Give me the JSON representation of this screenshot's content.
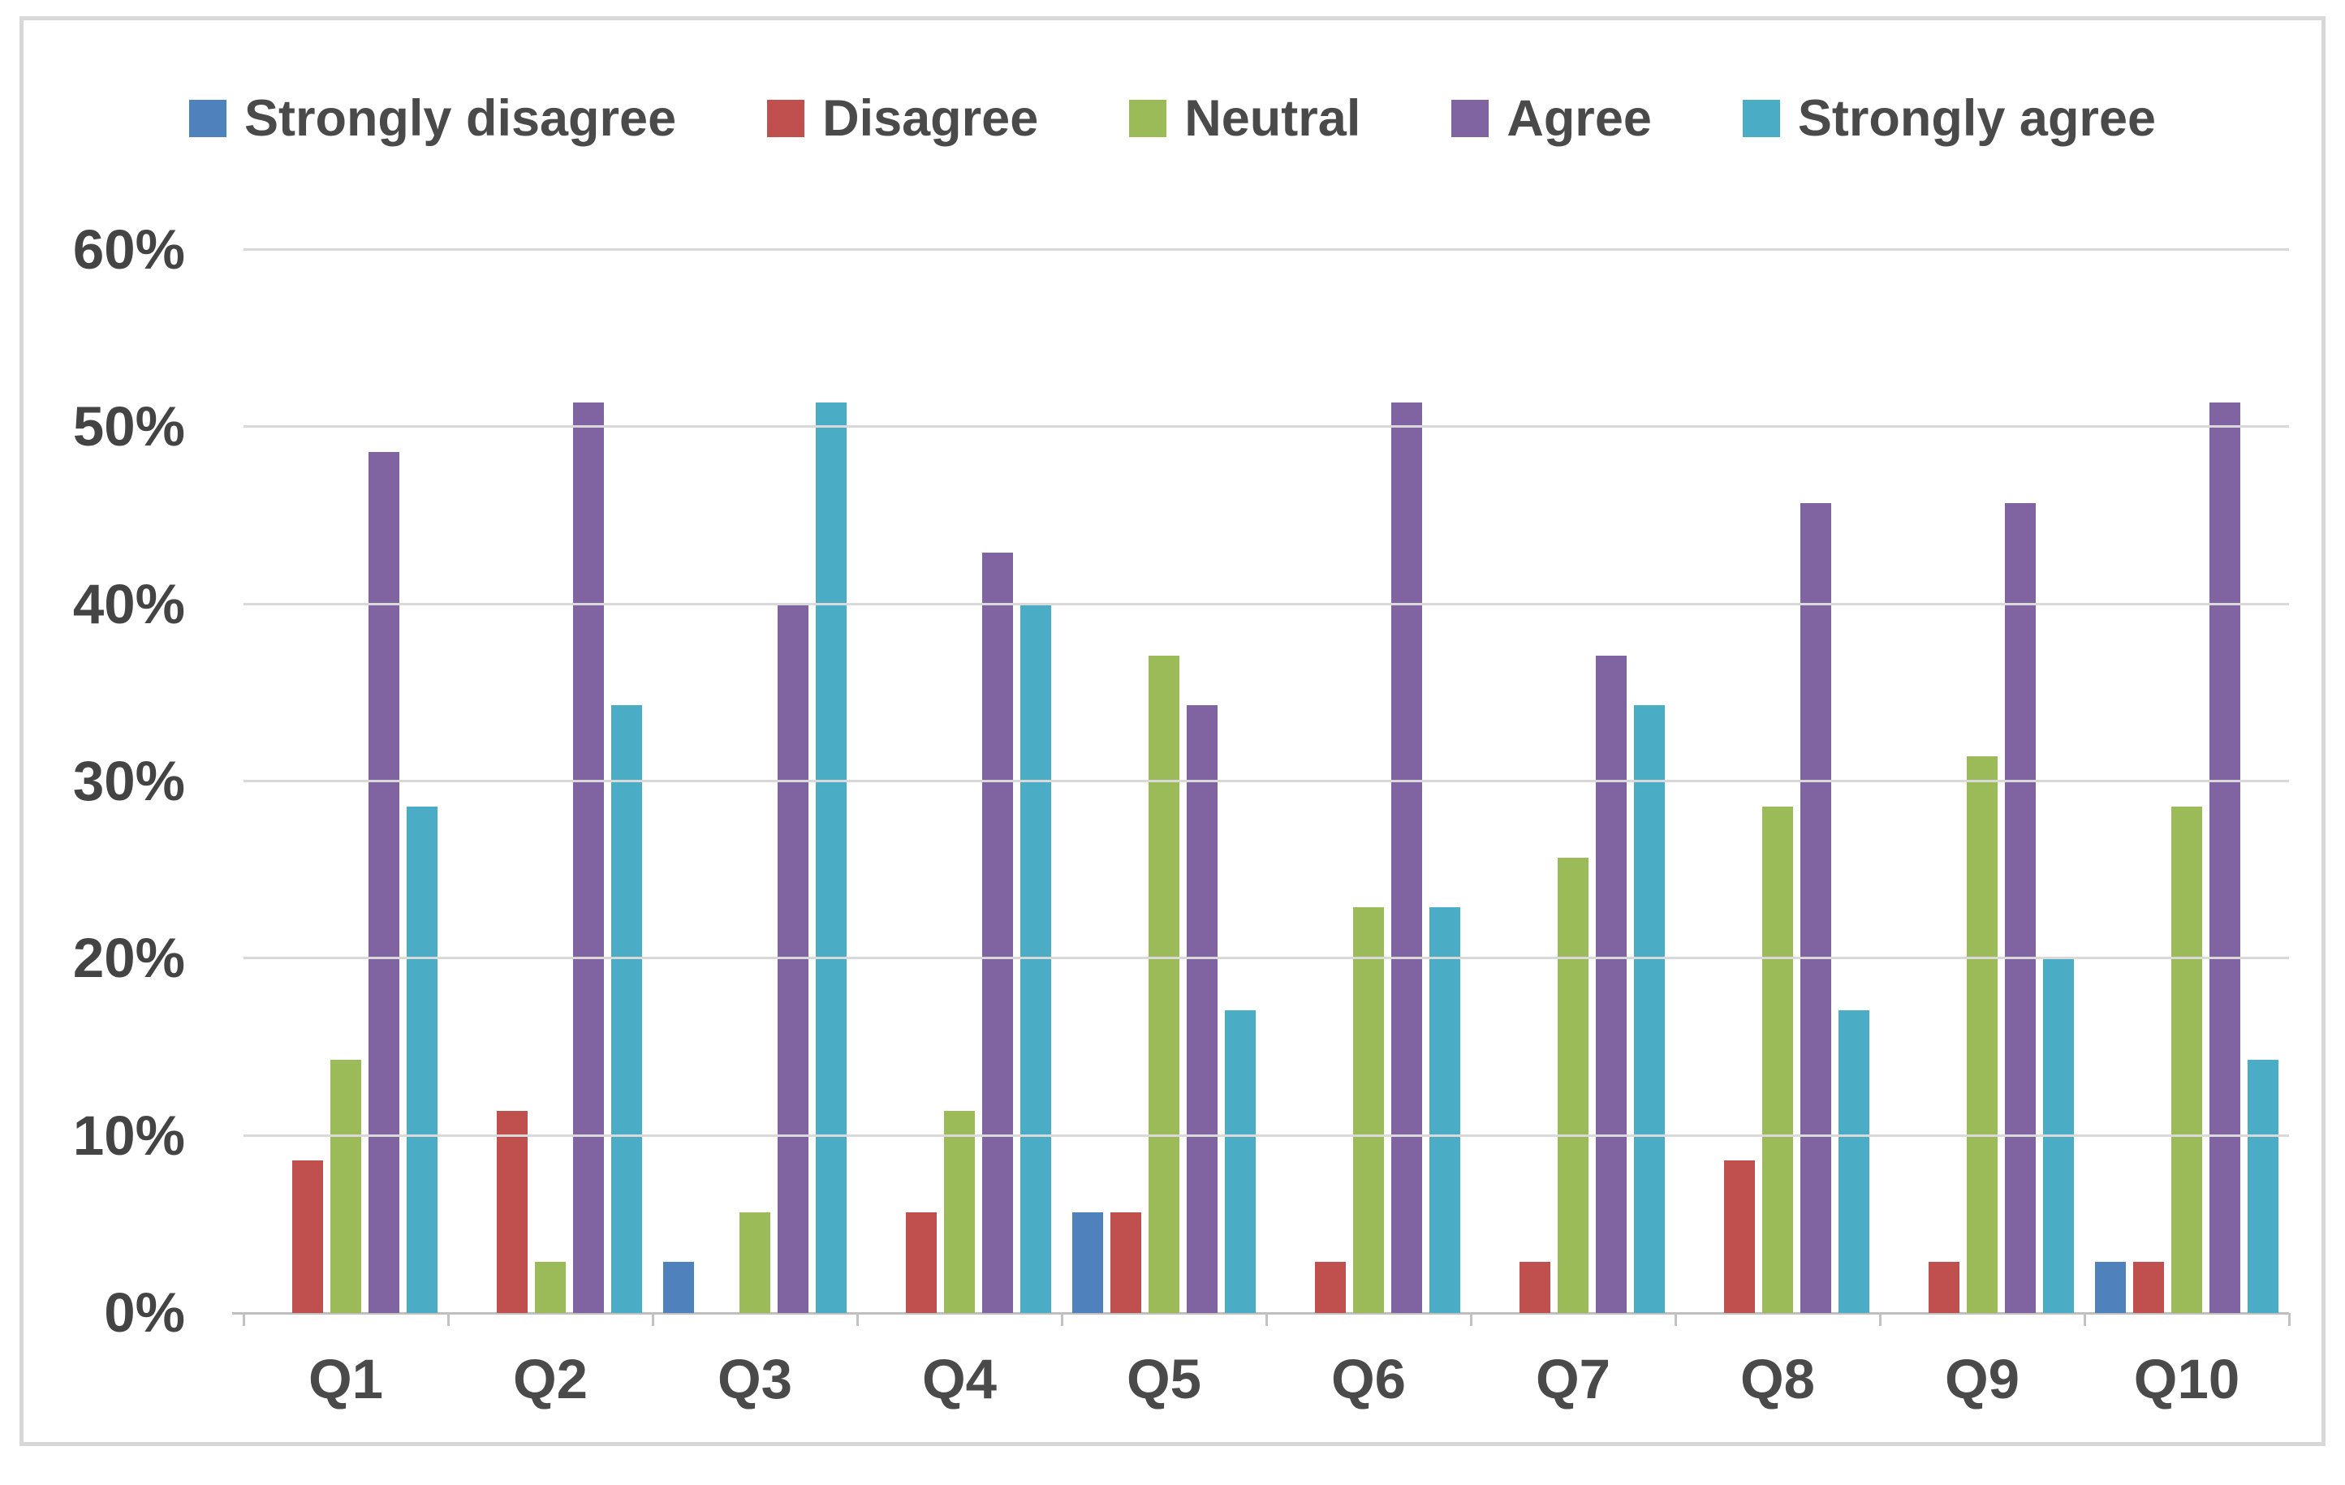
{
  "chart_data": {
    "type": "bar",
    "title": "",
    "categories": [
      "Q1",
      "Q2",
      "Q3",
      "Q4",
      "Q5",
      "Q6",
      "Q7",
      "Q8",
      "Q9",
      "Q10"
    ],
    "series": [
      {
        "name": "Strongly disagree",
        "color": "#4F81BD",
        "values": [
          0,
          0,
          2.9,
          0,
          5.7,
          0,
          0,
          0,
          0,
          2.9
        ]
      },
      {
        "name": "Disagree",
        "color": "#C0504D",
        "values": [
          8.6,
          11.4,
          0,
          5.7,
          5.7,
          2.9,
          2.9,
          8.6,
          2.9,
          2.9
        ]
      },
      {
        "name": "Neutral",
        "color": "#9BBB59",
        "values": [
          14.3,
          2.9,
          5.7,
          11.4,
          37.1,
          22.9,
          25.7,
          28.6,
          31.4,
          28.6
        ]
      },
      {
        "name": "Agree",
        "color": "#8064A2",
        "values": [
          48.6,
          51.4,
          40.0,
          42.9,
          34.3,
          51.4,
          37.1,
          45.7,
          45.7,
          51.4
        ]
      },
      {
        "name": "Strongly agree",
        "color": "#4BACC6",
        "values": [
          28.6,
          34.3,
          51.4,
          40.0,
          17.1,
          22.9,
          34.3,
          17.1,
          20.0,
          14.3
        ]
      }
    ],
    "xlabel": "",
    "ylabel": "",
    "ylim": [
      0,
      60
    ],
    "ytick_step": 10,
    "ytick_labels": [
      "0%",
      "10%",
      "20%",
      "30%",
      "40%",
      "50%",
      "60%"
    ],
    "grid": true,
    "legend_position": "top"
  },
  "colors": {
    "text": "#4A4A4A",
    "gridline": "#D9D9D9",
    "axis_line": "#BFBFBF",
    "frame_border": "#D8D8D8",
    "background": "#FFFFFF"
  }
}
